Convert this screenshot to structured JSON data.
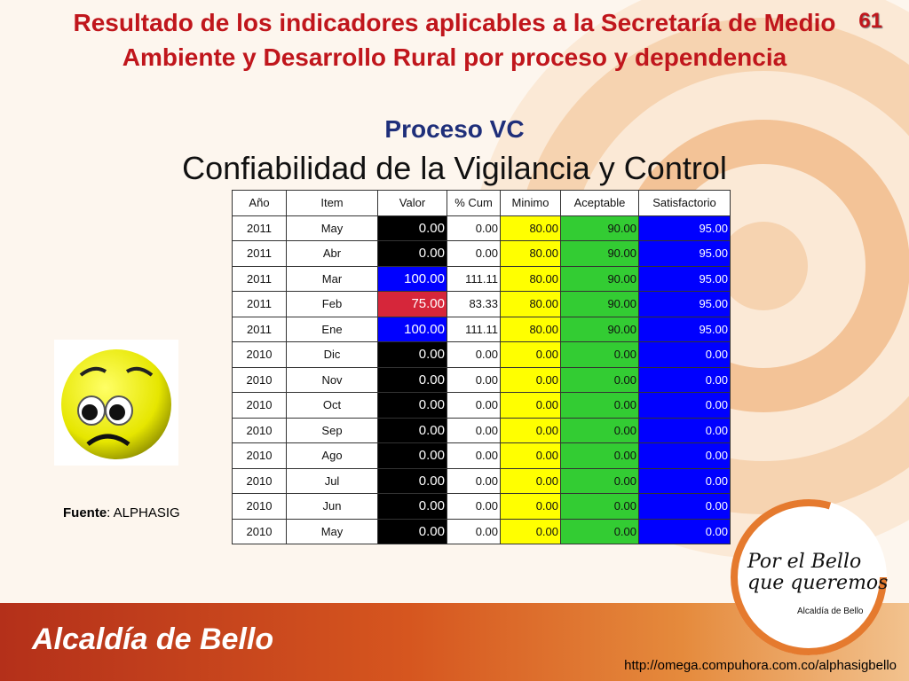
{
  "slide": {
    "title": "Resultado de los indicadores aplicables a la Secretaría de Medio Ambiente y Desarrollo Rural  por proceso y dependencia",
    "page_number": "61",
    "proceso": "Proceso VC",
    "subtitle": "Confiabilidad de la Vigilancia y Control"
  },
  "table": {
    "headers": [
      "Año",
      "Item",
      "Valor",
      "% Cum",
      "Minimo",
      "Aceptable",
      "Satisfactorio"
    ],
    "rows": [
      {
        "ano": "2011",
        "item": "May",
        "valor": "0.00",
        "cum": "0.00",
        "min": "80.00",
        "acep": "90.00",
        "sat": "95.00",
        "valor_color": "black"
      },
      {
        "ano": "2011",
        "item": "Abr",
        "valor": "0.00",
        "cum": "0.00",
        "min": "80.00",
        "acep": "90.00",
        "sat": "95.00",
        "valor_color": "black"
      },
      {
        "ano": "2011",
        "item": "Mar",
        "valor": "100.00",
        "cum": "111.11",
        "min": "80.00",
        "acep": "90.00",
        "sat": "95.00",
        "valor_color": "blue"
      },
      {
        "ano": "2011",
        "item": "Feb",
        "valor": "75.00",
        "cum": "83.33",
        "min": "80.00",
        "acep": "90.00",
        "sat": "95.00",
        "valor_color": "red"
      },
      {
        "ano": "2011",
        "item": "Ene",
        "valor": "100.00",
        "cum": "111.11",
        "min": "80.00",
        "acep": "90.00",
        "sat": "95.00",
        "valor_color": "blue"
      },
      {
        "ano": "2010",
        "item": "Dic",
        "valor": "0.00",
        "cum": "0.00",
        "min": "0.00",
        "acep": "0.00",
        "sat": "0.00",
        "valor_color": "black"
      },
      {
        "ano": "2010",
        "item": "Nov",
        "valor": "0.00",
        "cum": "0.00",
        "min": "0.00",
        "acep": "0.00",
        "sat": "0.00",
        "valor_color": "black"
      },
      {
        "ano": "2010",
        "item": "Oct",
        "valor": "0.00",
        "cum": "0.00",
        "min": "0.00",
        "acep": "0.00",
        "sat": "0.00",
        "valor_color": "black"
      },
      {
        "ano": "2010",
        "item": "Sep",
        "valor": "0.00",
        "cum": "0.00",
        "min": "0.00",
        "acep": "0.00",
        "sat": "0.00",
        "valor_color": "black"
      },
      {
        "ano": "2010",
        "item": "Ago",
        "valor": "0.00",
        "cum": "0.00",
        "min": "0.00",
        "acep": "0.00",
        "sat": "0.00",
        "valor_color": "black"
      },
      {
        "ano": "2010",
        "item": "Jul",
        "valor": "0.00",
        "cum": "0.00",
        "min": "0.00",
        "acep": "0.00",
        "sat": "0.00",
        "valor_color": "black"
      },
      {
        "ano": "2010",
        "item": "Jun",
        "valor": "0.00",
        "cum": "0.00",
        "min": "0.00",
        "acep": "0.00",
        "sat": "0.00",
        "valor_color": "black"
      },
      {
        "ano": "2010",
        "item": "May",
        "valor": "0.00",
        "cum": "0.00",
        "min": "0.00",
        "acep": "0.00",
        "sat": "0.00",
        "valor_color": "black"
      }
    ]
  },
  "fuente": {
    "label": "Fuente",
    "value": ": ALPHASIG"
  },
  "footer": {
    "brand": "Alcaldía de Bello",
    "url": "http://omega.compuhora.com.co/alphasigbello",
    "logo_line1": "Por el Bello",
    "logo_line2": "que queremos",
    "logo_small": "Alcaldía de Bello"
  },
  "icons": {
    "face": "sad-face-icon"
  },
  "colors": {
    "title": "#c0161c",
    "proceso": "#1f2f7a",
    "minimo": "#ffff00",
    "aceptable": "#33cc33",
    "satisfactorio": "#0000ff",
    "valor_red": "#d6263a"
  }
}
